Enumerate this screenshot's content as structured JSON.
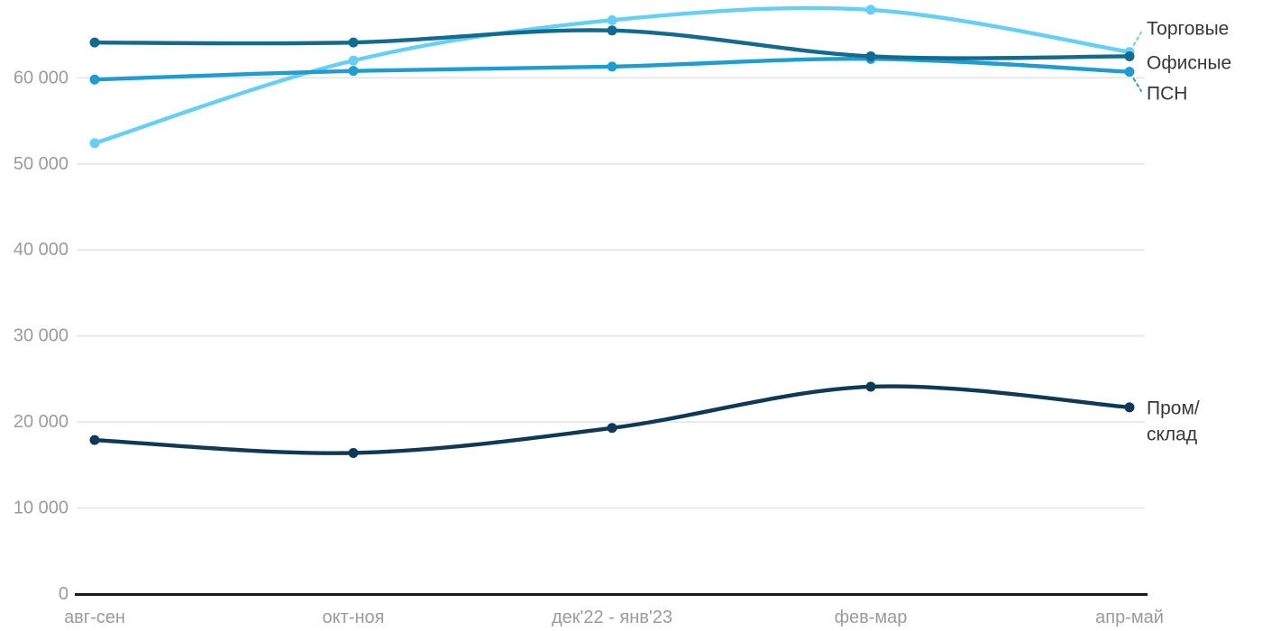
{
  "chart_data": {
    "type": "line",
    "title": "",
    "xlabel": "",
    "ylabel": "",
    "grid": "horizontal-only",
    "legend_position": "right-of-line-ends",
    "ylim": [
      0,
      69500
    ],
    "categories": [
      "авг-сен",
      "окт-ноя",
      "дек'22 - янв'23",
      "фев-мар",
      "апр-май"
    ],
    "yticks": [
      {
        "value": 0,
        "label": "0"
      },
      {
        "value": 10000,
        "label": "10 000"
      },
      {
        "value": 20000,
        "label": "20 000"
      },
      {
        "value": 30000,
        "label": "30 000"
      },
      {
        "value": 40000,
        "label": "40 000"
      },
      {
        "value": 50000,
        "label": "50 000"
      },
      {
        "value": 60000,
        "label": "60 000"
      }
    ],
    "series": [
      {
        "key": "torgovye",
        "name": "Торговые",
        "color": "#66CFF5",
        "values": [
          52400,
          62000,
          66700,
          67900,
          63000
        ],
        "label_lines": [
          "Торговые"
        ],
        "label_y": 32,
        "leader_to": [
          1266,
          36
        ],
        "z": 1
      },
      {
        "key": "ofisnye",
        "name": "Офисные",
        "color": "#136A8F",
        "values": [
          64100,
          64100,
          65500,
          62500,
          62500
        ],
        "label_lines": [
          "Офисные"
        ],
        "label_y": 70,
        "leader_to": null,
        "z": 3
      },
      {
        "key": "psn",
        "name": "ПСН",
        "color": "#1E9DD2",
        "values": [
          59800,
          60800,
          61300,
          62200,
          60700
        ],
        "label_lines": [
          "ПСН"
        ],
        "label_y": 104,
        "leader_to": [
          1266,
          101
        ],
        "z": 2
      },
      {
        "key": "prom-sklad",
        "name": "Пром/склад",
        "color": "#0E3A57",
        "values": [
          17900,
          16400,
          19300,
          24100,
          21700
        ],
        "label_lines": [
          "Пром/",
          "склад"
        ],
        "label_y": 453,
        "leader_to": null,
        "z": 4
      }
    ],
    "styles": {
      "background": "#FFFFFF",
      "grid_color": "#E8E8E8",
      "axis_line_color": "#1B1B1B",
      "tick_text_color": "#9B9B9B",
      "series_label_color": "#383838"
    }
  }
}
